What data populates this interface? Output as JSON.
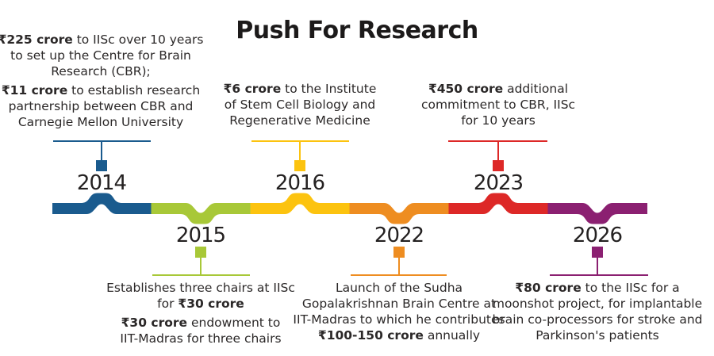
{
  "title": "Push For Research",
  "colors": {
    "background": "#ffffff",
    "title_text": "#1c1a1a",
    "body_text": "#2b2828",
    "blue": "#1a5b8e",
    "lime": "#a8c838",
    "yellow": "#fcc30f",
    "orange": "#ee8d21",
    "red": "#dd2827",
    "purple": "#8b2071"
  },
  "timeline": {
    "items": [
      {
        "year": "2014",
        "side": "top",
        "color": "#1a5b8e",
        "notes": [
          [
            {
              "t": "₹225 crore",
              "b": true
            },
            {
              "t": " to IISc over 10 years\nto set up the Centre for Brain\nResearch (CBR);"
            }
          ],
          [
            {
              "t": "₹11 crore",
              "b": true
            },
            {
              "t": " to establish research\npartnership between CBR and\nCarnegie Mellon University"
            }
          ]
        ]
      },
      {
        "year": "2015",
        "side": "bottom",
        "color": "#a8c838",
        "notes": [
          [
            {
              "t": "Establishes three chairs at IISc\nfor "
            },
            {
              "t": "₹30 crore",
              "b": true
            }
          ],
          [
            {
              "t": "₹30 crore",
              "b": true
            },
            {
              "t": " endowment to\nIIT-Madras for three chairs"
            }
          ]
        ]
      },
      {
        "year": "2016",
        "side": "top",
        "color": "#fcc30f",
        "notes": [
          [
            {
              "t": "₹6 crore",
              "b": true
            },
            {
              "t": " to the Institute\nof Stem Cell Biology and\nRegenerative Medicine"
            }
          ]
        ]
      },
      {
        "year": "2022",
        "side": "bottom",
        "color": "#ee8d21",
        "notes": [
          [
            {
              "t": "Launch of the Sudha\nGopalakrishnan Brain Centre at\nIIT-Madras to which he contributes\n"
            },
            {
              "t": "₹100-150 crore",
              "b": true
            },
            {
              "t": " annually"
            }
          ]
        ]
      },
      {
        "year": "2023",
        "side": "top",
        "color": "#dd2827",
        "notes": [
          [
            {
              "t": "₹450 crore",
              "b": true
            },
            {
              "t": " additional\ncommitment to CBR, IISc\nfor 10 years"
            }
          ]
        ]
      },
      {
        "year": "2026",
        "side": "bottom",
        "color": "#8b2071",
        "notes": [
          [
            {
              "t": "₹80 crore",
              "b": true
            },
            {
              "t": " to the IISc for a\nmoonshot project, for implantable\nbrain co-processors for stroke and\nParkinson's patients"
            }
          ]
        ]
      }
    ]
  }
}
